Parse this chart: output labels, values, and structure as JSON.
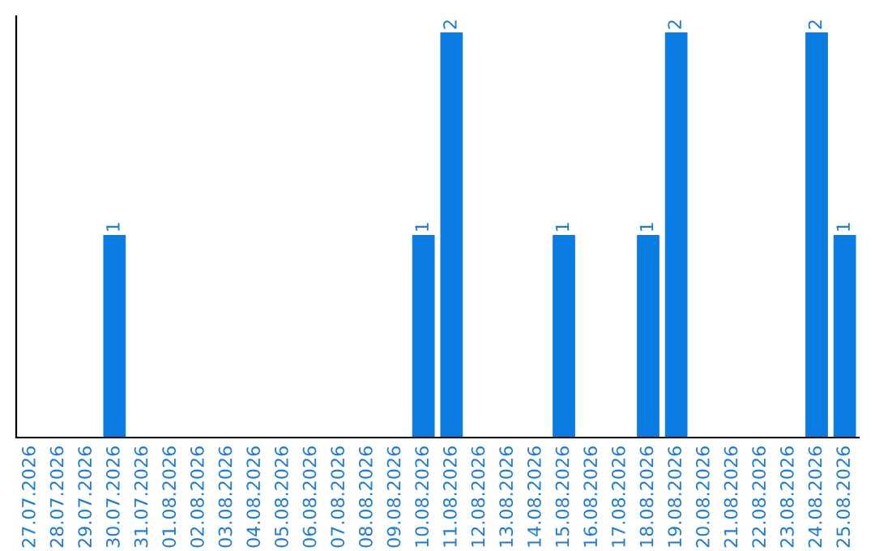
{
  "chart_data": {
    "type": "bar",
    "categories": [
      "27.07.2026",
      "28.07.2026",
      "29.07.2026",
      "30.07.2026",
      "31.07.2026",
      "01.08.2026",
      "02.08.2026",
      "03.08.2026",
      "04.08.2026",
      "05.08.2026",
      "06.08.2026",
      "07.08.2026",
      "08.08.2026",
      "09.08.2026",
      "10.08.2026",
      "11.08.2026",
      "12.08.2026",
      "13.08.2026",
      "14.08.2026",
      "15.08.2026",
      "16.08.2026",
      "17.08.2026",
      "18.08.2026",
      "19.08.2026",
      "20.08.2026",
      "21.08.2026",
      "22.08.2026",
      "23.08.2026",
      "24.08.2026",
      "25.08.2026"
    ],
    "values": [
      0,
      0,
      0,
      1,
      0,
      0,
      0,
      0,
      0,
      0,
      0,
      0,
      0,
      0,
      1,
      2,
      0,
      0,
      0,
      1,
      0,
      0,
      1,
      2,
      0,
      0,
      0,
      0,
      2,
      1
    ],
    "value_labels": [
      null,
      null,
      null,
      "1",
      null,
      null,
      null,
      null,
      null,
      null,
      null,
      null,
      null,
      null,
      "1",
      "2",
      null,
      null,
      null,
      "1",
      null,
      null,
      "1",
      "2",
      null,
      null,
      null,
      null,
      "2",
      "1"
    ],
    "color": "#0a7be0",
    "ylim": [
      0,
      2.08
    ],
    "tick_labels": "x",
    "grid": false,
    "legend": false
  }
}
